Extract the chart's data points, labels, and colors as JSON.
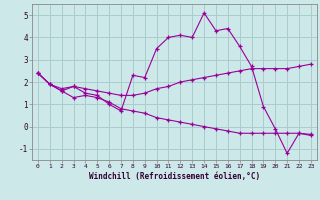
{
  "xlabel": "Windchill (Refroidissement éolien,°C)",
  "bg_color": "#cce8e8",
  "line_color": "#990099",
  "grid_color": "#aacccc",
  "xlim": [
    -0.5,
    23.5
  ],
  "ylim": [
    -1.5,
    5.5
  ],
  "yticks": [
    -1,
    0,
    1,
    2,
    3,
    4,
    5
  ],
  "xticks": [
    0,
    1,
    2,
    3,
    4,
    5,
    6,
    7,
    8,
    9,
    10,
    11,
    12,
    13,
    14,
    15,
    16,
    17,
    18,
    19,
    20,
    21,
    22,
    23
  ],
  "series": [
    {
      "x": [
        0,
        1,
        2,
        3,
        4,
        5,
        6,
        7,
        8,
        9,
        10,
        11,
        12,
        13,
        14,
        15,
        16,
        17,
        18,
        19,
        20,
        21,
        22,
        23
      ],
      "y": [
        2.4,
        1.9,
        1.6,
        1.8,
        1.5,
        1.4,
        1.0,
        0.7,
        2.3,
        2.2,
        3.5,
        4.0,
        4.1,
        4.0,
        5.1,
        4.3,
        4.4,
        3.6,
        2.7,
        0.9,
        -0.1,
        -1.2,
        -0.3,
        -0.4
      ]
    },
    {
      "x": [
        0,
        1,
        2,
        3,
        4,
        5,
        6,
        7,
        8,
        9,
        10,
        11,
        12,
        13,
        14,
        15,
        16,
        17,
        18,
        19,
        20,
        21,
        22,
        23
      ],
      "y": [
        2.4,
        1.9,
        1.7,
        1.8,
        1.7,
        1.6,
        1.5,
        1.4,
        1.4,
        1.5,
        1.7,
        1.8,
        2.0,
        2.1,
        2.2,
        2.3,
        2.4,
        2.5,
        2.6,
        2.6,
        2.6,
        2.6,
        2.7,
        2.8
      ]
    },
    {
      "x": [
        0,
        1,
        2,
        3,
        4,
        5,
        6,
        7,
        8,
        9,
        10,
        11,
        12,
        13,
        14,
        15,
        16,
        17,
        18,
        19,
        20,
        21,
        22,
        23
      ],
      "y": [
        2.4,
        1.9,
        1.6,
        1.3,
        1.4,
        1.3,
        1.1,
        0.8,
        0.7,
        0.6,
        0.4,
        0.3,
        0.2,
        0.1,
        0.0,
        -0.1,
        -0.2,
        -0.3,
        -0.3,
        -0.3,
        -0.3,
        -0.3,
        -0.3,
        -0.35
      ]
    }
  ]
}
